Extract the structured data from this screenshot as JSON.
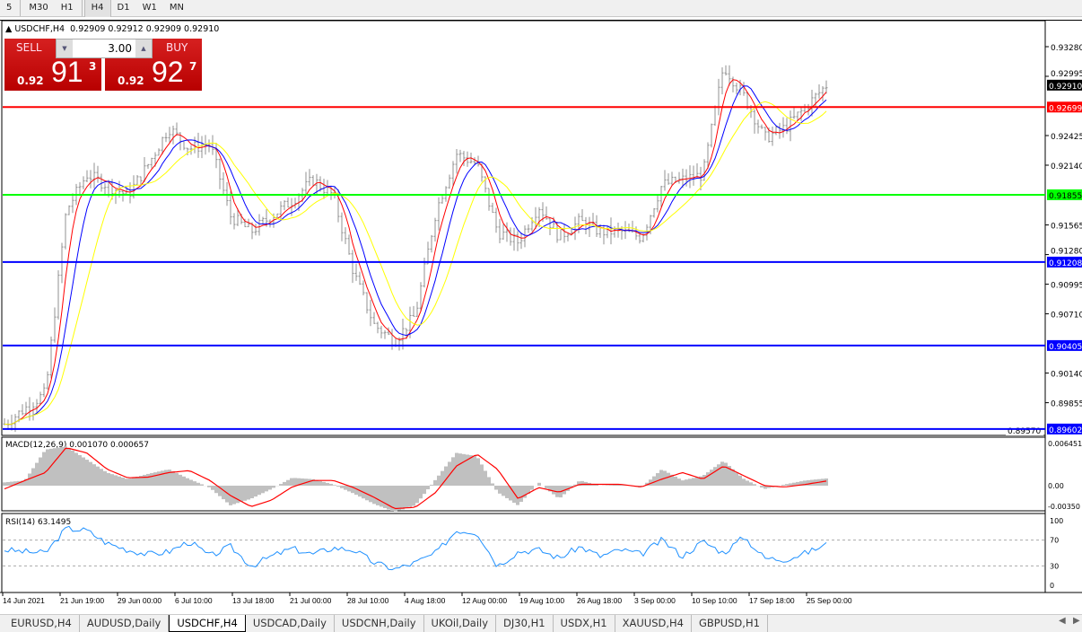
{
  "toolbar": {
    "timeframes": [
      "5",
      "M30",
      "H1",
      "H4",
      "D1",
      "W1",
      "MN"
    ],
    "active": "H4"
  },
  "chart": {
    "title": "USDCHF,H4",
    "ohlc": "0.92909 0.92912 0.92909 0.92910",
    "trade": {
      "sell_label": "SELL",
      "buy_label": "BUY",
      "lot": "3.00",
      "sell_prefix": "0.92",
      "sell_big": "91",
      "sell_sup": "3",
      "buy_prefix": "0.92",
      "buy_big": "92",
      "buy_sup": "7"
    },
    "price_ticks": [
      "0.93280",
      "0.92995",
      "0.92425",
      "0.92140",
      "0.91565",
      "0.91280",
      "0.90995",
      "0.90710",
      "0.90140",
      "0.89855",
      "0.89570"
    ],
    "current_price": "0.92910",
    "levels": [
      {
        "price": "0.92699",
        "color": "#ff0000"
      },
      {
        "price": "0.91855",
        "color": "#00ff00"
      },
      {
        "price": "0.91208",
        "color": "#0000ff"
      },
      {
        "price": "0.90405",
        "color": "#0000ff"
      },
      {
        "price": "0.89602",
        "color": "#0000ff"
      }
    ],
    "time_labels": [
      "14 Jun 2021",
      "21 Jun 19:00",
      "29 Jun 00:00",
      "6 Jul 10:00",
      "13 Jul 18:00",
      "21 Jul 00:00",
      "28 Jul 10:00",
      "4 Aug 18:00",
      "12 Aug 00:00",
      "19 Aug 10:00",
      "26 Aug 18:00",
      "3 Sep 00:00",
      "10 Sep 10:00",
      "17 Sep 18:00",
      "25 Sep 00:00"
    ]
  },
  "chart_data": [
    {
      "type": "candlestick",
      "symbol": "USDCHF",
      "timeframe": "H4",
      "ylim": [
        0.8957,
        0.9345
      ],
      "close_path": [
        0.8965,
        0.898,
        0.8995,
        0.917,
        0.9205,
        0.9195,
        0.9185,
        0.9215,
        0.925,
        0.923,
        0.9235,
        0.9165,
        0.915,
        0.9165,
        0.918,
        0.92,
        0.9185,
        0.911,
        0.906,
        0.9045,
        0.907,
        0.917,
        0.9225,
        0.9215,
        0.915,
        0.914,
        0.9175,
        0.9145,
        0.916,
        0.915,
        0.915,
        0.9145,
        0.9195,
        0.92,
        0.9205,
        0.931,
        0.928,
        0.924,
        0.925,
        0.927,
        0.9291
      ],
      "moving_averages": [
        {
          "color": "#ff0000"
        },
        {
          "color": "#0000ff"
        },
        {
          "color": "#ffff00"
        }
      ]
    },
    {
      "type": "bar",
      "indicator": "MACD(12,26,9)",
      "values_label": "0.001070 0.000657",
      "ticks": [
        "0.006451",
        "0.00",
        "-0.00350"
      ],
      "histogram": [
        0.0005,
        0.0008,
        0.0055,
        0.006,
        0.004,
        0.002,
        0.001,
        0.0018,
        0.0025,
        0.001,
        -0.0003,
        -0.003,
        -0.002,
        -0.0005,
        0.0012,
        0.001,
        0.0002,
        -0.0012,
        -0.0028,
        -0.004,
        -0.003,
        0.001,
        0.005,
        0.0045,
        -0.001,
        -0.003,
        0.0005,
        -0.002,
        0.0008,
        0.0,
        0.0002,
        -0.0003,
        0.0025,
        0.0008,
        0.0015,
        0.0038,
        0.001,
        -0.0005,
        0.0002,
        0.0008,
        0.0011
      ],
      "signal": [
        -0.0005,
        0.0008,
        0.002,
        0.0058,
        0.005,
        0.0025,
        0.0012,
        0.0013,
        0.002,
        0.0023,
        0.0008,
        -0.0015,
        -0.0032,
        -0.0022,
        -0.0002,
        0.0008,
        0.0008,
        -0.0003,
        -0.0018,
        -0.0035,
        -0.0033,
        -0.001,
        0.003,
        0.0048,
        0.0025,
        -0.002,
        -0.0003,
        -0.001,
        0.0002,
        0.0002,
        0.0002,
        -0.0002,
        0.001,
        0.002,
        0.001,
        0.003,
        0.0015,
        0.0,
        -0.0002,
        0.0002,
        0.0007
      ]
    },
    {
      "type": "line",
      "indicator": "RSI(14)",
      "value_label": "63.1495",
      "ticks": [
        "100",
        "70",
        "30",
        "0"
      ],
      "levels": [
        70,
        30
      ],
      "values": [
        55,
        52,
        50,
        88,
        85,
        65,
        55,
        48,
        52,
        68,
        45,
        60,
        30,
        45,
        57,
        48,
        58,
        55,
        35,
        25,
        35,
        50,
        85,
        82,
        30,
        52,
        55,
        42,
        60,
        45,
        55,
        48,
        70,
        45,
        68,
        50,
        75,
        42,
        40,
        50,
        63.1
      ]
    }
  ],
  "tabs": [
    "EURUSD,H4",
    "AUDUSD,Daily",
    "USDCHF,H4",
    "USDCAD,Daily",
    "USDCNH,Daily",
    "UKOil,Daily",
    "DJ30,H1",
    "USDX,H1",
    "XAUUSD,H4",
    "GBPUSD,H1"
  ],
  "active_tab": "USDCHF,H4"
}
